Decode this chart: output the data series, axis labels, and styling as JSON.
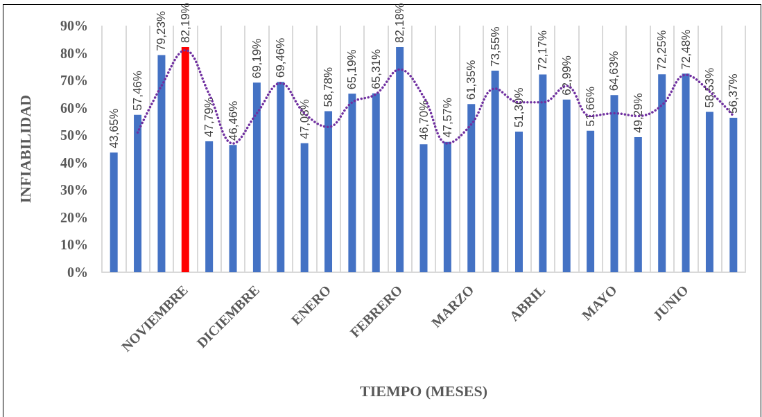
{
  "chart_data": {
    "type": "bar",
    "xlabel": "TIEMPO (MESES)",
    "ylabel": "INFIABILIDAD",
    "categories": [
      null,
      null,
      null,
      "NOVIEMBRE",
      null,
      null,
      "DICIEMBRE",
      null,
      null,
      "ENERO",
      null,
      null,
      "FEBRERO",
      null,
      null,
      "MARZO",
      null,
      null,
      "ABRIL",
      null,
      null,
      "MAYO",
      null,
      null,
      "JUNIO",
      null,
      null
    ],
    "series": [
      {
        "colors": [
          "#4472c4",
          "#4472c4",
          "#4472c4",
          "#ff0000",
          "#4472c4",
          "#4472c4",
          "#4472c4",
          "#4472c4",
          "#4472c4",
          "#4472c4",
          "#4472c4",
          "#4472c4",
          "#4472c4",
          "#4472c4",
          "#4472c4",
          "#4472c4",
          "#4472c4",
          "#4472c4",
          "#4472c4",
          "#4472c4",
          "#4472c4",
          "#4472c4",
          "#4472c4",
          "#4472c4",
          "#4472c4",
          "#4472c4",
          "#4472c4"
        ],
        "values": [
          43.65,
          57.46,
          79.23,
          82.19,
          47.79,
          46.46,
          69.19,
          69.46,
          47.08,
          58.78,
          65.19,
          65.31,
          82.18,
          46.7,
          47.57,
          61.35,
          73.55,
          51.3,
          72.17,
          62.99,
          51.66,
          64.63,
          49.29,
          72.25,
          72.48,
          58.53,
          56.37
        ],
        "value_labels": [
          "43,65%",
          "57,46%",
          "79,23%",
          "82,19%",
          "47,79%",
          "46,46%",
          "69,19%",
          "69,46%",
          "47,08%",
          "58,78%",
          "65,19%",
          "65,31%",
          "82,18%",
          "46,70%",
          "47,57%",
          "61,35%",
          "73,55%",
          "51,30%",
          "72,17%",
          "62,99%",
          "51,66%",
          "64,63%",
          "49,29%",
          "72,25%",
          "72,48%",
          "58,53%",
          "56,37%"
        ]
      },
      {
        "type": "line",
        "color": "#7030a0",
        "line_style": "dotted",
        "marker": "none",
        "values": [
          null,
          51,
          68,
          81,
          65,
          47,
          58,
          69,
          58,
          53,
          62,
          65,
          74,
          64,
          47,
          54,
          67,
          62,
          62,
          68,
          57,
          58,
          57,
          61,
          72,
          66,
          57
        ]
      }
    ],
    "ylim": [
      0,
      90
    ],
    "yticks": [
      {
        "value": 0,
        "label": "0%"
      },
      {
        "value": 10,
        "label": "10%"
      },
      {
        "value": 20,
        "label": "20%"
      },
      {
        "value": 30,
        "label": "30%"
      },
      {
        "value": 40,
        "label": "40%"
      },
      {
        "value": 50,
        "label": "50%"
      },
      {
        "value": 60,
        "label": "60%"
      },
      {
        "value": 70,
        "label": "70%"
      },
      {
        "value": 80,
        "label": "80%"
      },
      {
        "value": 90,
        "label": "90%"
      }
    ],
    "grid": "x"
  }
}
